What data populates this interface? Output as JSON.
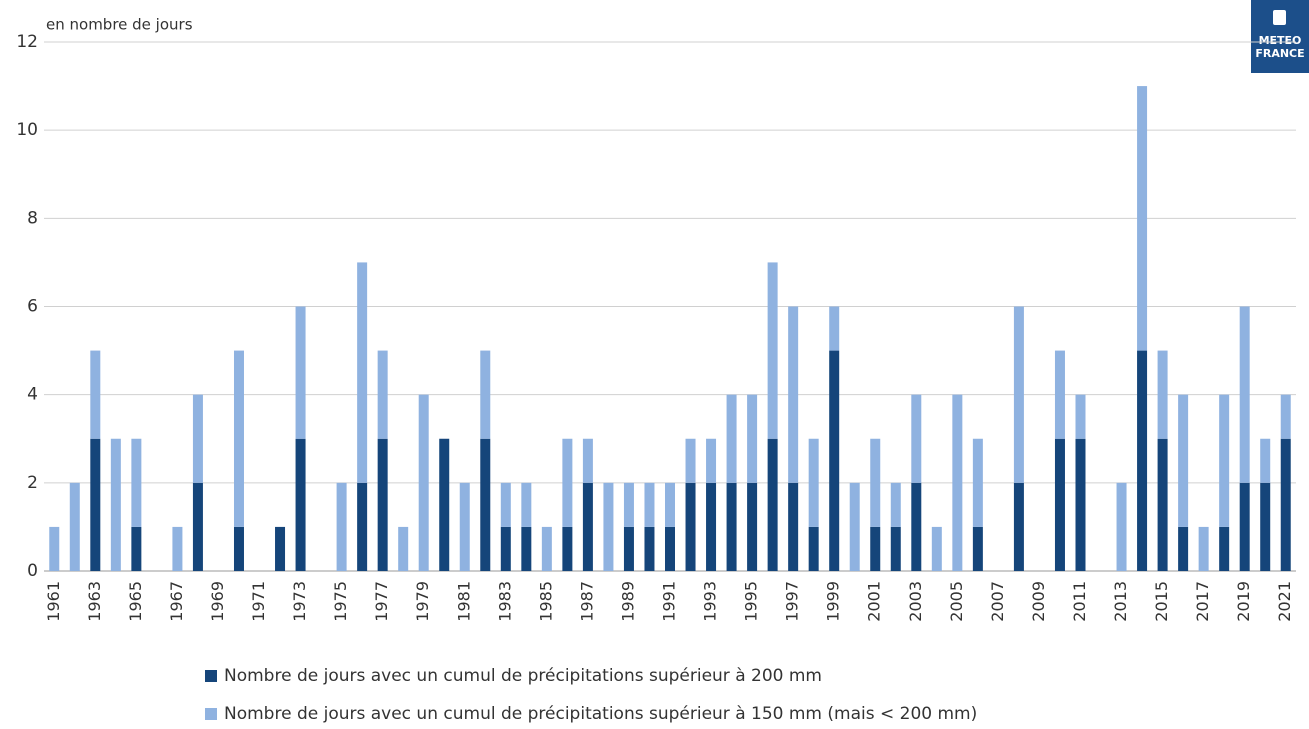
{
  "chart_data": {
    "type": "stacked-bar",
    "y_label": "en nombre de jours",
    "logo": [
      "METEO",
      "FRANCE"
    ],
    "categories": [
      "1961",
      null,
      "1963",
      null,
      "1965",
      null,
      "1967",
      null,
      "1969",
      null,
      "1971",
      null,
      "1973",
      null,
      "1975",
      null,
      "1977",
      null,
      "1979",
      null,
      "1981",
      null,
      "1983",
      null,
      "1985",
      null,
      "1987",
      null,
      "1989",
      null,
      "1991",
      null,
      "1993",
      null,
      "1995",
      null,
      "1997",
      null,
      "1999",
      null,
      "2001",
      null,
      "2003",
      null,
      "2005",
      null,
      "2007",
      null,
      "2009",
      null,
      "2011",
      null,
      "2013",
      null,
      "2015",
      null,
      "2017",
      null,
      "2019",
      null,
      "2021"
    ],
    "series": [
      {
        "name": "Nombre de jours avec un cumul de précipitations supérieur à 200 mm",
        "color": "#15457a",
        "values": [
          0,
          0,
          3,
          0,
          1,
          0,
          0,
          2,
          0,
          1,
          0,
          1,
          3,
          0,
          0,
          2,
          3,
          0,
          0,
          3,
          0,
          3,
          1,
          1,
          0,
          1,
          2,
          0,
          1,
          1,
          1,
          2,
          2,
          2,
          2,
          3,
          2,
          1,
          5,
          0,
          1,
          1,
          2,
          0,
          0,
          1,
          0,
          2,
          0,
          3,
          3,
          0,
          0,
          5,
          3,
          1,
          0,
          1,
          2,
          2,
          3
        ]
      },
      {
        "name": "Nombre de jours avec un cumul de précipitations supérieur à 150 mm (mais < 200 mm)",
        "color": "#8fb2e0",
        "values": [
          1,
          2,
          2,
          3,
          2,
          0,
          1,
          2,
          0,
          4,
          0,
          0,
          3,
          0,
          2,
          5,
          2,
          1,
          4,
          0,
          2,
          2,
          1,
          1,
          1,
          2,
          1,
          2,
          1,
          1,
          1,
          1,
          1,
          2,
          2,
          4,
          4,
          2,
          1,
          2,
          2,
          1,
          2,
          1,
          4,
          2,
          0,
          4,
          0,
          2,
          1,
          0,
          2,
          6,
          2,
          3,
          1,
          3,
          4,
          1,
          1
        ]
      }
    ],
    "ylim": [
      0,
      12
    ],
    "yticks": [
      0,
      2,
      4,
      6,
      8,
      10,
      12
    ],
    "grid": true
  }
}
